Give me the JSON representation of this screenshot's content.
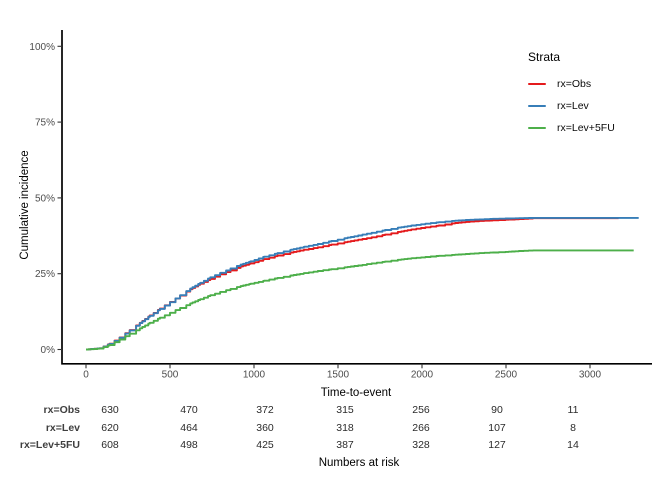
{
  "figure": {
    "y_axis_title": "Cumulative incidence",
    "x_axis_title": "Time-to-event",
    "legend_title": "Strata",
    "caption": "Numbers at risk"
  },
  "chart_data": {
    "type": "line",
    "subtype": "cumulative-incidence-step-curves",
    "title": "",
    "xlabel": "Time-to-event",
    "ylabel": "Cumulative incidence",
    "xlim": [
      0,
      3320
    ],
    "ylim": [
      0,
      100
    ],
    "grid": false,
    "legend_position": "inside-top-right",
    "x_ticks": [
      {
        "value": 0,
        "label": "0"
      },
      {
        "value": 500,
        "label": "500"
      },
      {
        "value": 1000,
        "label": "1000"
      },
      {
        "value": 1500,
        "label": "1500"
      },
      {
        "value": 2000,
        "label": "2000"
      },
      {
        "value": 2500,
        "label": "2500"
      },
      {
        "value": 3000,
        "label": "3000"
      }
    ],
    "y_ticks": [
      {
        "value": 0,
        "label": "0%"
      },
      {
        "value": 25,
        "label": "25%"
      },
      {
        "value": 50,
        "label": "50%"
      },
      {
        "value": 75,
        "label": "75%"
      },
      {
        "value": 100,
        "label": "100%"
      }
    ],
    "series": [
      {
        "name": "rx=Obs",
        "color": "#E41A1C",
        "points": [
          [
            0,
            0
          ],
          [
            80,
            0.4
          ],
          [
            140,
            1.9
          ],
          [
            200,
            4.0
          ],
          [
            260,
            6.4
          ],
          [
            320,
            8.8
          ],
          [
            380,
            11.2
          ],
          [
            440,
            13.5
          ],
          [
            500,
            15.7
          ],
          [
            560,
            17.8
          ],
          [
            620,
            19.9
          ],
          [
            680,
            21.7
          ],
          [
            740,
            23.3
          ],
          [
            800,
            24.8
          ],
          [
            860,
            26.1
          ],
          [
            920,
            27.4
          ],
          [
            980,
            28.4
          ],
          [
            1060,
            29.8
          ],
          [
            1140,
            31.0
          ],
          [
            1220,
            32.0
          ],
          [
            1300,
            32.9
          ],
          [
            1380,
            33.7
          ],
          [
            1460,
            34.6
          ],
          [
            1540,
            35.4
          ],
          [
            1620,
            36.2
          ],
          [
            1700,
            37.0
          ],
          [
            1780,
            37.9
          ],
          [
            1860,
            38.8
          ],
          [
            1940,
            39.6
          ],
          [
            2020,
            40.3
          ],
          [
            2100,
            40.9
          ],
          [
            2180,
            41.6
          ],
          [
            2260,
            42.1
          ],
          [
            2340,
            42.4
          ],
          [
            2420,
            42.6
          ],
          [
            2500,
            42.8
          ],
          [
            2580,
            43.0
          ],
          [
            2660,
            43.3
          ],
          [
            3170,
            43.3
          ]
        ]
      },
      {
        "name": "rx=Lev",
        "color": "#377EB8",
        "points": [
          [
            0,
            0
          ],
          [
            80,
            0.4
          ],
          [
            140,
            1.8
          ],
          [
            200,
            3.9
          ],
          [
            260,
            6.3
          ],
          [
            320,
            8.7
          ],
          [
            380,
            11.1
          ],
          [
            440,
            13.4
          ],
          [
            500,
            15.6
          ],
          [
            560,
            17.9
          ],
          [
            620,
            20.1
          ],
          [
            680,
            22.0
          ],
          [
            740,
            23.8
          ],
          [
            800,
            25.3
          ],
          [
            860,
            26.7
          ],
          [
            920,
            28.0
          ],
          [
            980,
            29.1
          ],
          [
            1060,
            30.6
          ],
          [
            1140,
            31.8
          ],
          [
            1220,
            32.9
          ],
          [
            1300,
            33.9
          ],
          [
            1380,
            34.8
          ],
          [
            1460,
            35.8
          ],
          [
            1540,
            36.7
          ],
          [
            1620,
            37.6
          ],
          [
            1700,
            38.5
          ],
          [
            1780,
            39.4
          ],
          [
            1860,
            40.2
          ],
          [
            1940,
            40.9
          ],
          [
            2020,
            41.5
          ],
          [
            2100,
            42.0
          ],
          [
            2180,
            42.4
          ],
          [
            2260,
            42.7
          ],
          [
            2340,
            42.9
          ],
          [
            2420,
            43.1
          ],
          [
            2500,
            43.2
          ],
          [
            2580,
            43.3
          ],
          [
            2660,
            43.4
          ],
          [
            3290,
            43.4
          ]
        ]
      },
      {
        "name": "rx=Lev+5FU",
        "color": "#4DAF4A",
        "points": [
          [
            0,
            0
          ],
          [
            80,
            0.3
          ],
          [
            140,
            1.5
          ],
          [
            200,
            3.3
          ],
          [
            260,
            5.2
          ],
          [
            320,
            7.0
          ],
          [
            380,
            8.8
          ],
          [
            440,
            10.5
          ],
          [
            500,
            12.1
          ],
          [
            560,
            13.7
          ],
          [
            620,
            15.2
          ],
          [
            680,
            16.6
          ],
          [
            740,
            17.9
          ],
          [
            800,
            19.0
          ],
          [
            860,
            20.0
          ],
          [
            920,
            20.9
          ],
          [
            980,
            21.7
          ],
          [
            1060,
            22.7
          ],
          [
            1140,
            23.6
          ],
          [
            1220,
            24.4
          ],
          [
            1300,
            25.2
          ],
          [
            1380,
            25.9
          ],
          [
            1460,
            26.5
          ],
          [
            1540,
            27.1
          ],
          [
            1620,
            27.7
          ],
          [
            1700,
            28.4
          ],
          [
            1780,
            29.0
          ],
          [
            1860,
            29.6
          ],
          [
            1940,
            30.1
          ],
          [
            2020,
            30.5
          ],
          [
            2100,
            30.9
          ],
          [
            2180,
            31.2
          ],
          [
            2260,
            31.5
          ],
          [
            2340,
            31.8
          ],
          [
            2420,
            32.0
          ],
          [
            2500,
            32.2
          ],
          [
            2580,
            32.5
          ],
          [
            2660,
            32.7
          ],
          [
            3260,
            32.7
          ]
        ]
      }
    ],
    "risk_table": {
      "caption": "Numbers at risk",
      "time_columns": [
        0,
        500,
        1000,
        1500,
        2000,
        2500,
        3000
      ],
      "rows": [
        {
          "label": "rx=Obs",
          "values": [
            "630",
            "470",
            "372",
            "315",
            "256",
            "90",
            "11"
          ]
        },
        {
          "label": "rx=Lev",
          "values": [
            "620",
            "464",
            "360",
            "318",
            "266",
            "107",
            "8"
          ]
        },
        {
          "label": "rx=Lev+5FU",
          "values": [
            "608",
            "498",
            "425",
            "387",
            "328",
            "127",
            "14"
          ]
        }
      ]
    }
  }
}
